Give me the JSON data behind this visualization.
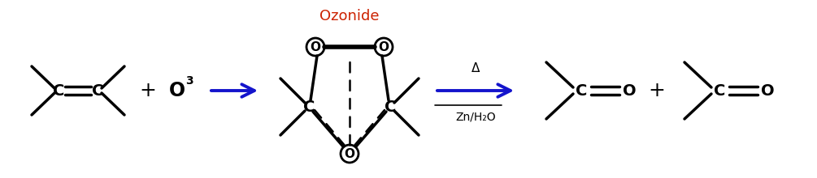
{
  "bg_color": "#ffffff",
  "black": "#000000",
  "blue": "#1414cc",
  "red": "#cc2200",
  "figsize": [
    10.05,
    2.2
  ],
  "dpi": 100,
  "ozonide_label": "Ozonide",
  "arrow2_label_top": "Zn/H₂O",
  "arrow2_label_bot": "Δ",
  "lw": 2.0,
  "lw_thick": 2.5
}
